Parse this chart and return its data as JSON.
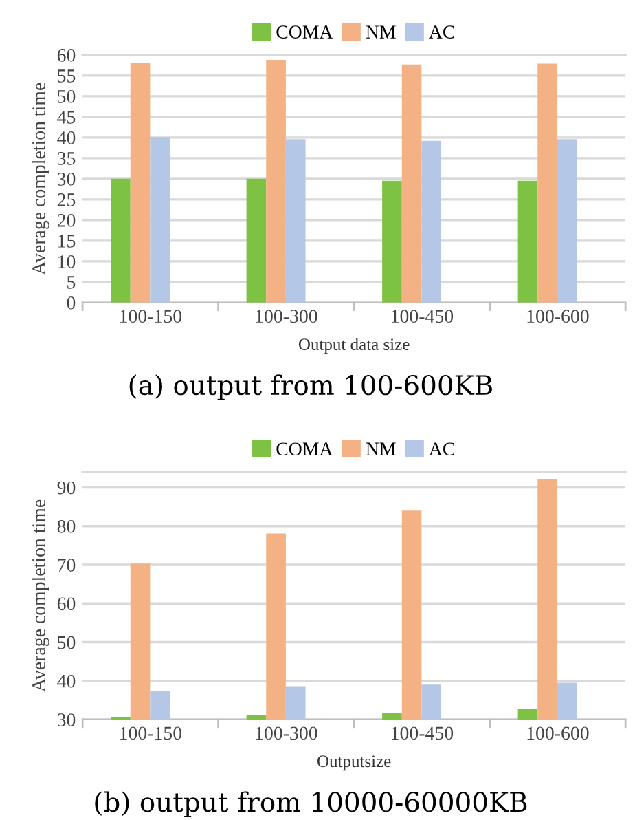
{
  "chart_data": [
    {
      "type": "bar",
      "title": "(a) output from 100-600KB",
      "xlabel": "Output data size",
      "ylabel": "Average completion time",
      "categories": [
        "100-150",
        "100-300",
        "100-450",
        "100-600"
      ],
      "series": [
        {
          "name": "COMA",
          "color": "#7dc242",
          "values": [
            30,
            30,
            29.5,
            29.5
          ]
        },
        {
          "name": "NM",
          "color": "#f4b183",
          "values": [
            58,
            58.8,
            57.7,
            57.9
          ]
        },
        {
          "name": "AC",
          "color": "#b4c7e7",
          "values": [
            40.1,
            39.6,
            39.2,
            39.6
          ]
        }
      ],
      "ylim": [
        0,
        60
      ],
      "yticks": [
        0,
        5,
        10,
        15,
        20,
        25,
        30,
        35,
        40,
        45,
        50,
        55,
        60
      ],
      "grid": "y",
      "legend": "top"
    },
    {
      "type": "bar",
      "title": "(b) output from 10000-60000KB",
      "xlabel": "Outputsize",
      "ylabel": "Average completion time",
      "categories": [
        "100-150",
        "100-300",
        "100-450",
        "100-600"
      ],
      "series": [
        {
          "name": "COMA",
          "color": "#7dc242",
          "values": [
            30.6,
            31.2,
            31.6,
            32.8
          ]
        },
        {
          "name": "NM",
          "color": "#f4b183",
          "values": [
            70.3,
            78.1,
            84.0,
            92.1
          ]
        },
        {
          "name": "AC",
          "color": "#b4c7e7",
          "values": [
            37.4,
            38.6,
            39.0,
            39.5
          ]
        }
      ],
      "ylim": [
        30,
        94
      ],
      "yticks": [
        30,
        40,
        50,
        60,
        70,
        80,
        90
      ],
      "grid": "y",
      "legend": "top"
    }
  ]
}
